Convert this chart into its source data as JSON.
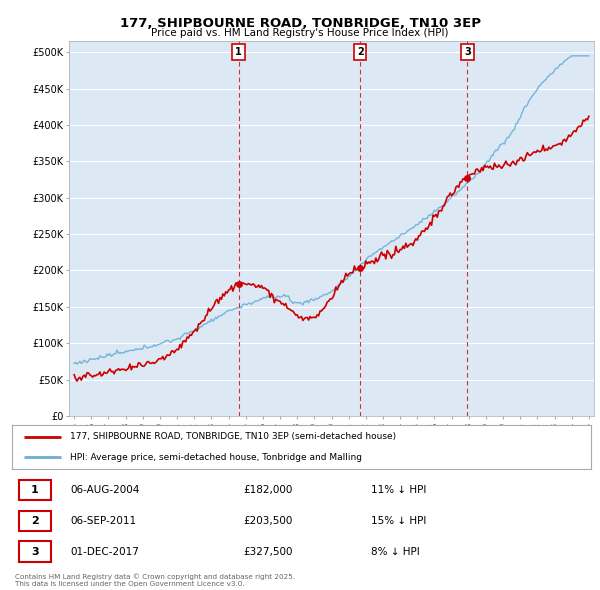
{
  "title": "177, SHIPBOURNE ROAD, TONBRIDGE, TN10 3EP",
  "subtitle": "Price paid vs. HM Land Registry's House Price Index (HPI)",
  "background_color": "#dce9f5",
  "plot_bg_color": "#dce9f5",
  "legend_line1": "177, SHIPBOURNE ROAD, TONBRIDGE, TN10 3EP (semi-detached house)",
  "legend_line2": "HPI: Average price, semi-detached house, Tonbridge and Malling",
  "transactions": [
    {
      "num": 1,
      "date": "06-AUG-2004",
      "price": "£182,000",
      "pct": "11% ↓ HPI",
      "year": 2004.58
    },
    {
      "num": 2,
      "date": "06-SEP-2011",
      "price": "£203,500",
      "pct": "15% ↓ HPI",
      "year": 2011.67
    },
    {
      "num": 3,
      "date": "01-DEC-2017",
      "price": "£327,500",
      "pct": "8% ↓ HPI",
      "year": 2017.92
    }
  ],
  "footer": "Contains HM Land Registry data © Crown copyright and database right 2025.\nThis data is licensed under the Open Government Licence v3.0.",
  "hpi_color": "#6baed6",
  "price_color": "#cc0000",
  "marker_color": "#cc0000",
  "yticks": [
    0,
    50000,
    100000,
    150000,
    200000,
    250000,
    300000,
    350000,
    400000,
    450000,
    500000
  ],
  "ylim": [
    0,
    515000
  ],
  "xlim_start": 1994.7,
  "xlim_end": 2025.3
}
